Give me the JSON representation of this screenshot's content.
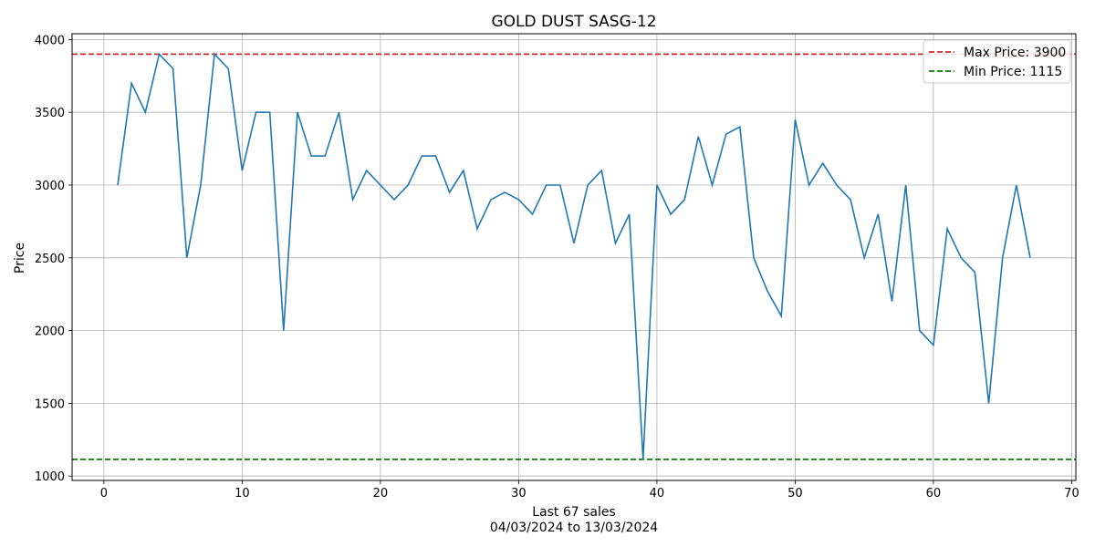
{
  "chart_data": {
    "type": "line",
    "title": "GOLD DUST SASG-12",
    "xlabel": "Last 67 sales",
    "xlabel_sub": "04/03/2024 to 13/03/2024",
    "ylabel": "Price",
    "xlim": [
      -2.3,
      70.3
    ],
    "ylim": [
      970,
      4040
    ],
    "xticks": [
      0,
      10,
      20,
      30,
      40,
      50,
      60,
      70
    ],
    "yticks": [
      1000,
      1500,
      2000,
      2500,
      3000,
      3500,
      4000
    ],
    "grid": true,
    "legend_position": "top-right",
    "colors": {
      "series": "#1f77b4",
      "max_line": "#d62728",
      "min_line": "#008000",
      "grid": "#b0b0b0"
    },
    "x": [
      1,
      2,
      3,
      4,
      5,
      6,
      7,
      8,
      9,
      10,
      11,
      12,
      13,
      14,
      15,
      16,
      17,
      18,
      19,
      20,
      21,
      22,
      23,
      24,
      25,
      26,
      27,
      28,
      29,
      30,
      31,
      32,
      33,
      34,
      35,
      36,
      37,
      38,
      39,
      40,
      41,
      42,
      43,
      44,
      45,
      46,
      47,
      48,
      49,
      50,
      51,
      52,
      53,
      54,
      55,
      56,
      57,
      58,
      59,
      60,
      61,
      62,
      63,
      64,
      65,
      66,
      67
    ],
    "values": [
      3000,
      3700,
      3500,
      3900,
      3800,
      2500,
      3000,
      3900,
      3800,
      3100,
      3500,
      3500,
      2000,
      3500,
      3200,
      3200,
      3500,
      2900,
      3100,
      3000,
      2900,
      3000,
      3200,
      3200,
      2950,
      3100,
      2700,
      2900,
      2950,
      2900,
      2800,
      3000,
      3000,
      2600,
      3000,
      3100,
      2600,
      2800,
      1115,
      3000,
      2800,
      2900,
      3333,
      3000,
      3350,
      3400,
      2500,
      2270,
      2100,
      3450,
      3000,
      3150,
      3000,
      2900,
      2500,
      2800,
      2200,
      3000,
      2000,
      1900,
      2700,
      2500,
      2400,
      1500,
      2500,
      3000,
      2500
    ],
    "reference_lines": [
      {
        "name": "Max Price: 3900",
        "value": 3900
      },
      {
        "name": "Min Price: 1115",
        "value": 1115
      }
    ]
  }
}
